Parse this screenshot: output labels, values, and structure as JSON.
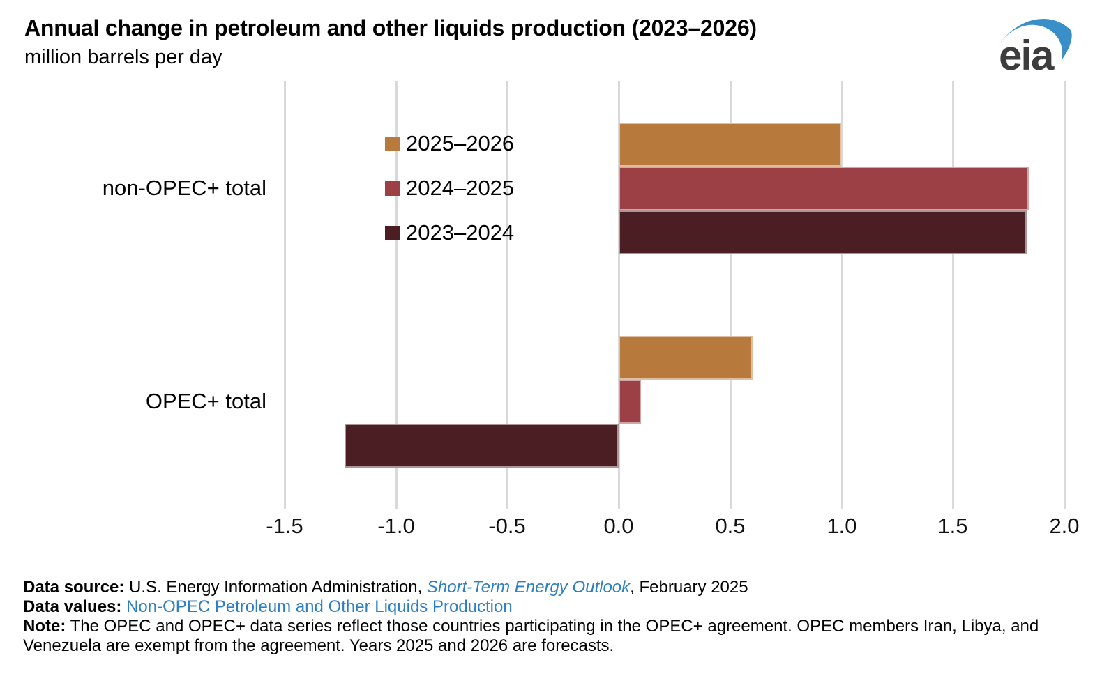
{
  "chart_data": {
    "type": "bar",
    "orientation": "horizontal",
    "title": "Annual change in petroleum and other liquids production (2023–2026)",
    "subtitle": "million barrels per day",
    "xlabel": "",
    "ylabel": "",
    "categories": [
      "non-OPEC+ total",
      "OPEC+ total"
    ],
    "series": [
      {
        "name": "2025–2026",
        "color": "#b8793c",
        "values": [
          1.0,
          0.6
        ]
      },
      {
        "name": "2024–2025",
        "color": "#9d4046",
        "values": [
          1.84,
          0.1
        ]
      },
      {
        "name": "2023–2024",
        "color": "#4a1e22",
        "values": [
          1.83,
          -1.23
        ]
      }
    ],
    "xlim": [
      -1.5,
      2.0
    ],
    "xticks": [
      {
        "label": "-1.5",
        "value": -1.5
      },
      {
        "label": "-1.0",
        "value": -1.0
      },
      {
        "label": "-0.5",
        "value": -0.5
      },
      {
        "label": "0.0",
        "value": 0.0
      },
      {
        "label": "0.5",
        "value": 0.5
      },
      {
        "label": "1.0",
        "value": 1.0
      },
      {
        "label": "1.5",
        "value": 1.5
      },
      {
        "label": "2.0",
        "value": 2.0
      }
    ],
    "grid": "vertical gridlines on",
    "gridline_color": "#d9d9d9",
    "legend_position": "inside plot, upper-left of zero axis"
  },
  "logo": {
    "text": "eia",
    "swoosh_color": "#3a8fc9",
    "text_color": "#3d3d3d"
  },
  "footer": {
    "source_label": "Data source:",
    "source_text_1": " U.S. Energy Information Administration, ",
    "source_link": "Short-Term Energy Outlook",
    "source_text_2": ", February 2025",
    "values_label": "Data values:",
    "values_link": " Non-OPEC Petroleum and Other Liquids Production",
    "note_label": "Note:",
    "note_text": " The OPEC and OPEC+ data series reflect those countries participating in the OPEC+ agreement. OPEC members Iran, Libya, and Venezuela are exempt from the agreement. Years 2025 and 2026 are forecasts.",
    "link_color": "#2d7fc1"
  }
}
